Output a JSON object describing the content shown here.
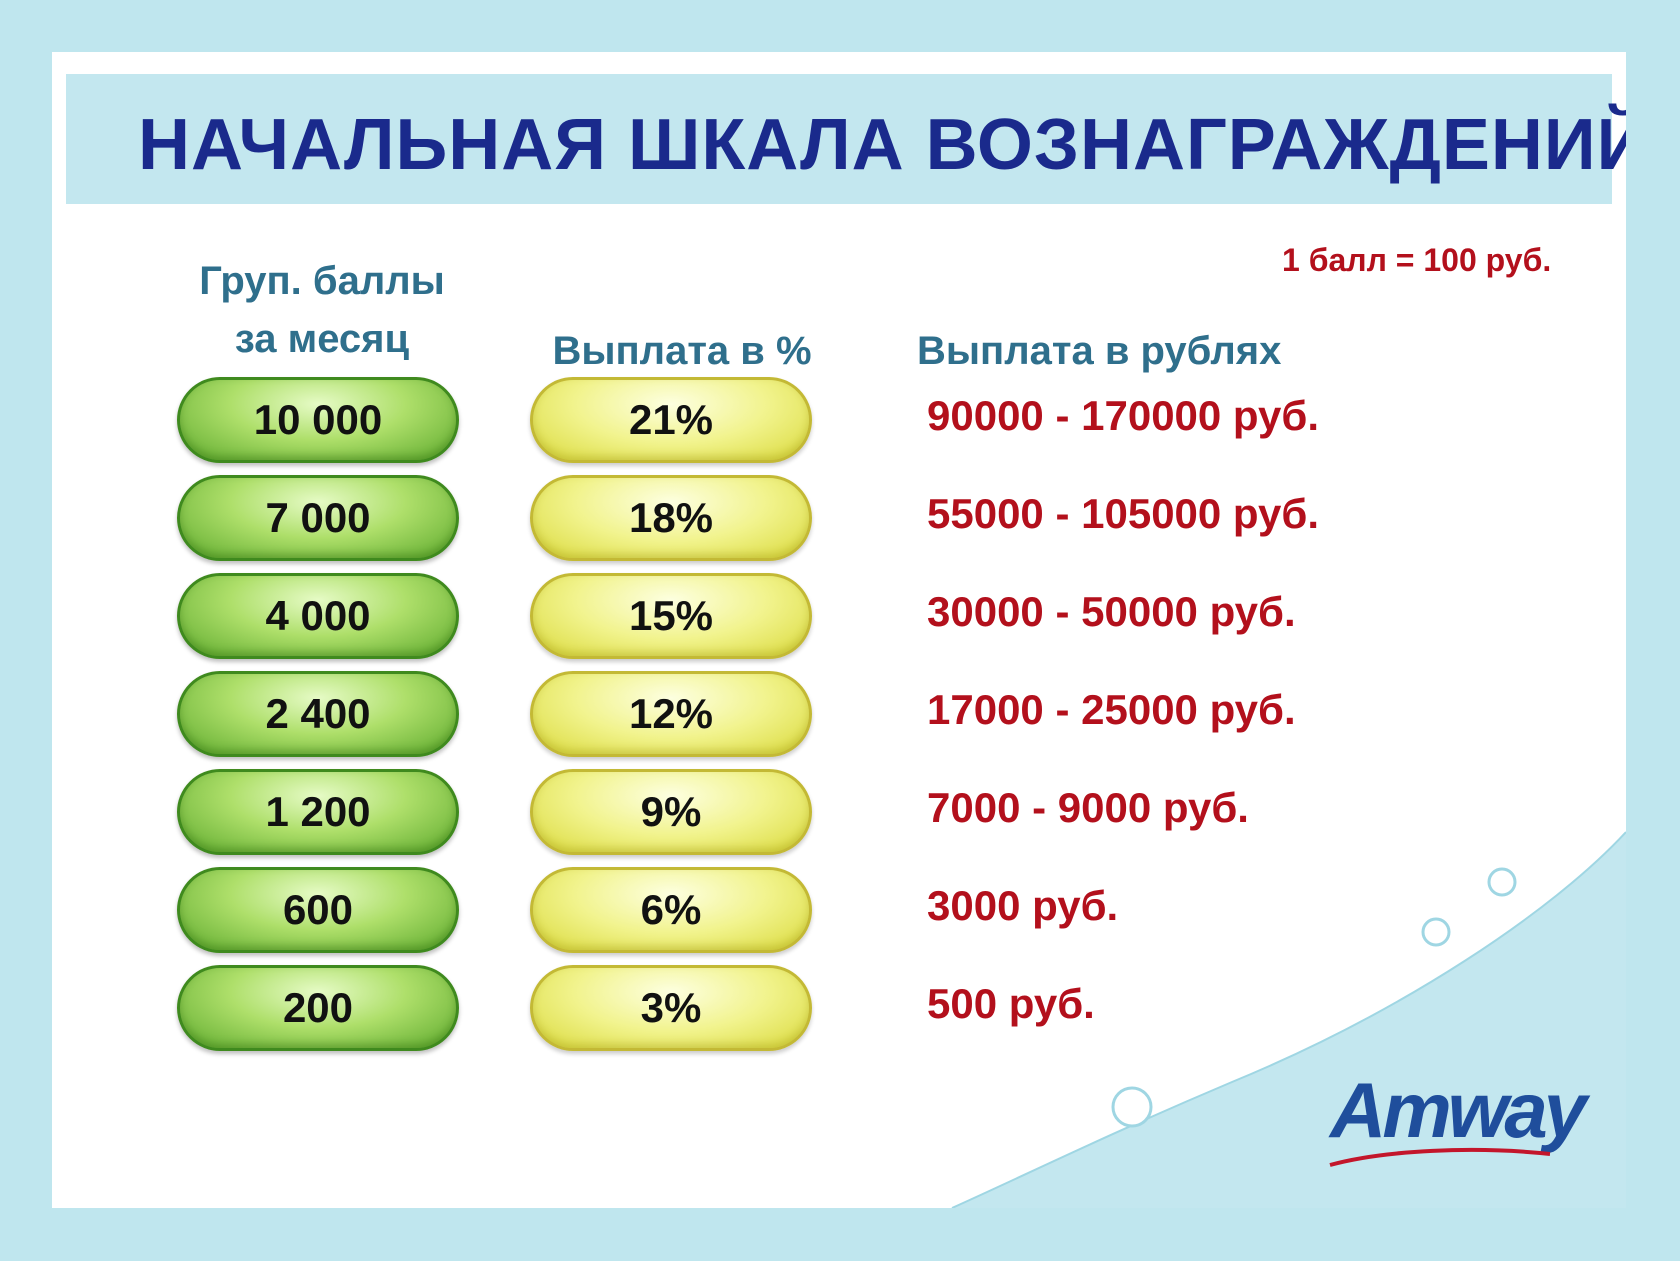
{
  "title": "НАЧАЛЬНАЯ ШКАЛА ВОЗНАГРАЖДЕНИЙ",
  "rate_note": "1 балл = 100 руб.",
  "headers": {
    "points": [
      "Груп. баллы",
      "за месяц"
    ],
    "percent": "Выплата в %",
    "rubles": "Выплата в рублях"
  },
  "rows": [
    {
      "points": "10 000",
      "percent": "21%",
      "rubles": "90000 - 170000 руб."
    },
    {
      "points": "7 000",
      "percent": "18%",
      "rubles": "55000 - 105000 руб."
    },
    {
      "points": "4 000",
      "percent": "15%",
      "rubles": "30000 - 50000 руб."
    },
    {
      "points": "2 400",
      "percent": "12%",
      "rubles": "17000 - 25000 руб."
    },
    {
      "points": "1 200",
      "percent": "9%",
      "rubles": "7000 - 9000 руб."
    },
    {
      "points": "600",
      "percent": "6%",
      "rubles": "3000 руб."
    },
    {
      "points": "200",
      "percent": "3%",
      "rubles": "500 руб."
    }
  ],
  "logo": "Amway",
  "colors": {
    "title": "#1a2a8c",
    "header": "#2f6f8c",
    "payout": "#b3101c",
    "points_pill": "#8ccf4a",
    "percent_pill": "#eef27a",
    "background": "#bfe6ee"
  }
}
